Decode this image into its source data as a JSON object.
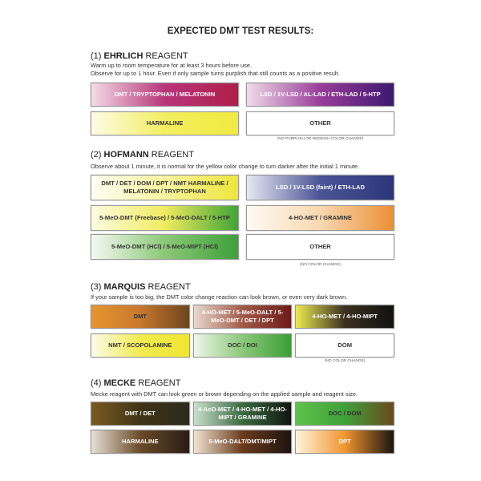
{
  "title": "EXPECTED DMT TEST RESULTS:",
  "sections": [
    {
      "num": "(1)",
      "name": "EHRLICH",
      "suffix": "REAGENT",
      "lines": [
        "Warm up to room temperature for at least 3 hours before use.",
        "Observe for up to 1 hour. Even if only sample turns purplish that still counts as a positive result."
      ],
      "results": [
        {
          "label": "DMT / TRYPTOPHAN / MELATONIN",
          "colors": [
            "#f3dce6",
            "#b8357a",
            "#b01e4a"
          ],
          "text": "#fff"
        },
        {
          "label": "LSD / 1V-LSD / AL-LAD / ETH-LAD / 5-HTP",
          "colors": [
            "#f0dbe8",
            "#9a3c9a",
            "#3d1870"
          ],
          "text": "#fff"
        },
        {
          "label": "HARMALINE",
          "colors": [
            "#fdfbe6",
            "#f3ef60",
            "#f0ea40"
          ],
          "text": "#333"
        },
        {
          "label": "OTHER",
          "colors": [
            "#ffffff",
            "#ffffff"
          ],
          "text": "#333"
        }
      ],
      "note": "(NO PURPLISH OR REDDISH COLOR CHANGE)"
    },
    {
      "num": "(2)",
      "name": "HOFMANN",
      "suffix": "REAGENT",
      "lines": [
        "Observe about 1 minute, it is normal for the yellow color change to turn darker after the initial 1 minute."
      ],
      "results": [
        {
          "label": "DMT / DET / DOM / DPT / NMT HARMALINE / MELATONIN / TRYPTOPHAN",
          "colors": [
            "#fffef2",
            "#f8f3a0",
            "#eee63a"
          ],
          "text": "#333"
        },
        {
          "label": "LSD / 1V-LSD (faint) / ETH-LAD",
          "colors": [
            "#e6e8f2",
            "#4a5496",
            "#2b3578"
          ],
          "text": "#fff"
        },
        {
          "label": "5-MeO-DMT (Freebase) / 5-MeO-DALT / 5-HTP",
          "colors": [
            "#fdfbe0",
            "#f0ec60",
            "#3fa535"
          ],
          "text": "#333"
        },
        {
          "label": "4-HO-MET / GRAMINE",
          "colors": [
            "#fffaf4",
            "#f8d8b0",
            "#ec8f35"
          ],
          "text": "#333"
        },
        {
          "label": "5-MeO-DMT (HCl) / 5-MeO-MIPT (HCl)",
          "colors": [
            "#f4f9f2",
            "#8cc878",
            "#3ea03a"
          ],
          "text": "#333"
        },
        {
          "label": "OTHER",
          "colors": [
            "#ffffff",
            "#ffffff"
          ],
          "text": "#333"
        }
      ],
      "note": "(NO COLOR CHANGE)"
    },
    {
      "num": "(3)",
      "name": "MARQUIS",
      "suffix": "REAGENT",
      "lines": [
        "If your sample is too big, the DMT color change reaction can look brown, or even very dark brown."
      ],
      "results": [
        {
          "label": "DMT",
          "colors": [
            "#e6962e",
            "#c8782c",
            "#6b4520"
          ],
          "text": "#333"
        },
        {
          "label": "4-HO-MET / 5-MeO-DALT / 5-MeO-DMT / DET / DPT",
          "colors": [
            "#e9d8cf",
            "#a15a48",
            "#6e1a16"
          ],
          "text": "#fff"
        },
        {
          "label": "4-HO-MET / 4-HO-MIPT",
          "colors": [
            "#eeea50",
            "#3a3020",
            "#111111"
          ],
          "text": "#fff"
        },
        {
          "label": "NMT / SCOPOLAMINE",
          "colors": [
            "#fdfbe8",
            "#f2ec50",
            "#eee630"
          ],
          "text": "#333"
        },
        {
          "label": "DOC / DOI",
          "colors": [
            "#eef6ea",
            "#8cc87a",
            "#3b9e36"
          ],
          "text": "#333"
        },
        {
          "label": "DOM",
          "colors": [
            "#ffffff",
            "#ffffff"
          ],
          "text": "#333"
        }
      ],
      "note": "(NO COLOR CHANGE)"
    },
    {
      "num": "(4)",
      "name": "MECKE",
      "suffix": "REAGENT",
      "lines": [
        "Mecke reagent with DMT can look green or brown depending on the applied sample and reagent size."
      ],
      "results": [
        {
          "label": "DMT / DET",
          "colors": [
            "#7a5a20",
            "#403418",
            "#2a2a1c"
          ],
          "text": "#fff"
        },
        {
          "label": "4-AcO-MET / 4-HO-MET / 4-HO-MIPT / GRAMINE",
          "colors": [
            "#c8e0cc",
            "#3a6a40",
            "#101510"
          ],
          "text": "#fff"
        },
        {
          "label": "DOC / DOM",
          "colors": [
            "#5fc24a",
            "#3fa03a",
            "#6a4a1c"
          ],
          "text": "#333"
        },
        {
          "label": "HARMALINE",
          "colors": [
            "#e8e0d4",
            "#6a4a2a",
            "#2a1c14"
          ],
          "text": "#fff"
        },
        {
          "label": "5-MeO-DALT/DMT/MIPT",
          "colors": [
            "#f0e4d0",
            "#6a3a1c",
            "#1e1410"
          ],
          "text": "#fff"
        },
        {
          "label": "DPT",
          "colors": [
            "#fff4dc",
            "#f0962e",
            "#1a1410"
          ],
          "text": "#fff"
        }
      ],
      "note": ""
    }
  ]
}
